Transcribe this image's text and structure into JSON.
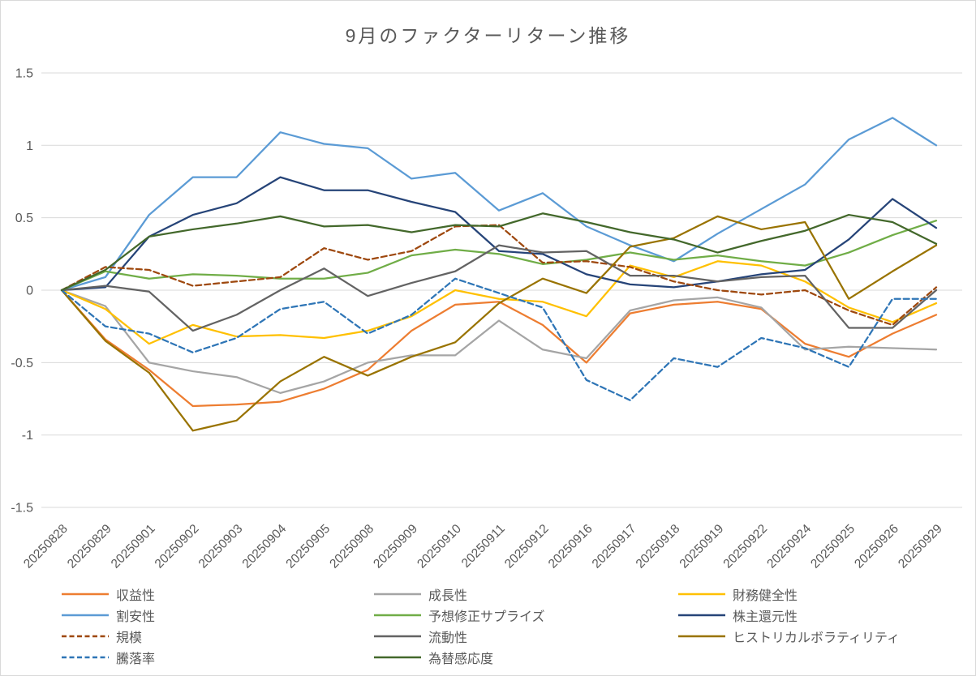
{
  "title": "9月のファクターリターン推移",
  "colors": {
    "background": "#FFFFFF",
    "frame_border": "#D9D9D9",
    "gridline": "#D9D9D9",
    "axis_text": "#595959",
    "title_text": "#595959",
    "legend_text": "#595959"
  },
  "chart_data": {
    "type": "line",
    "title": "9月のファクターリターン推移",
    "xlabel": "",
    "ylabel": "",
    "ylim": [
      -1.5,
      1.5
    ],
    "grid": true,
    "legend_position": "bottom",
    "y_ticks": [
      1.5,
      1,
      0.5,
      0,
      -0.5,
      -1,
      -1.5
    ],
    "y_tick_labels": [
      "1.5",
      "1",
      "0.5",
      "0",
      "-0.5",
      "-1",
      "-1.5"
    ],
    "x": [
      "20250828",
      "20250829",
      "20250901",
      "20250902",
      "20250903",
      "20250904",
      "20250905",
      "20250908",
      "20250909",
      "20250910",
      "20250911",
      "20250912",
      "20250916",
      "20250917",
      "20250918",
      "20250919",
      "20250922",
      "20250924",
      "20250925",
      "20250926",
      "20250929"
    ],
    "series": [
      {
        "key": "profitability",
        "name": "収益性",
        "color": "#ED7D31",
        "dash": false,
        "values": [
          0,
          -0.34,
          -0.55,
          -0.8,
          -0.79,
          -0.77,
          -0.68,
          -0.55,
          -0.28,
          -0.1,
          -0.08,
          -0.24,
          -0.5,
          -0.16,
          -0.1,
          -0.08,
          -0.13,
          -0.37,
          -0.46,
          -0.3,
          -0.17
        ]
      },
      {
        "key": "growth",
        "name": "成長性",
        "color": "#A5A5A5",
        "dash": false,
        "values": [
          0,
          -0.11,
          -0.5,
          -0.56,
          -0.6,
          -0.71,
          -0.63,
          -0.5,
          -0.45,
          -0.45,
          -0.21,
          -0.41,
          -0.47,
          -0.14,
          -0.07,
          -0.05,
          -0.12,
          -0.41,
          -0.39,
          -0.4,
          -0.41
        ]
      },
      {
        "key": "financial-health",
        "name": "財務健全性",
        "color": "#FFC000",
        "dash": false,
        "values": [
          0,
          -0.13,
          -0.37,
          -0.24,
          -0.32,
          -0.31,
          -0.33,
          -0.28,
          -0.18,
          0,
          -0.06,
          -0.08,
          -0.18,
          0.17,
          0.09,
          0.2,
          0.17,
          0.06,
          -0.12,
          -0.22,
          -0.09
        ]
      },
      {
        "key": "value",
        "name": "割安性",
        "color": "#5B9BD5",
        "dash": false,
        "values": [
          0,
          0.09,
          0.52,
          0.78,
          0.78,
          1.09,
          1.01,
          0.98,
          0.77,
          0.81,
          0.55,
          0.67,
          0.44,
          0.31,
          0.2,
          0.39,
          0.56,
          0.73,
          1.04,
          1.19,
          1.0
        ]
      },
      {
        "key": "forecast-revision-surprise",
        "name": "予想修正サプライズ",
        "color": "#70AD47",
        "dash": false,
        "values": [
          0,
          0.13,
          0.08,
          0.11,
          0.1,
          0.08,
          0.08,
          0.12,
          0.24,
          0.28,
          0.25,
          0.18,
          0.21,
          0.26,
          0.21,
          0.24,
          0.2,
          0.17,
          0.26,
          0.38,
          0.48
        ]
      },
      {
        "key": "shareholder-return",
        "name": "株主還元性",
        "color": "#264478",
        "dash": false,
        "values": [
          0,
          0.02,
          0.37,
          0.52,
          0.6,
          0.78,
          0.69,
          0.69,
          0.61,
          0.54,
          0.27,
          0.25,
          0.11,
          0.04,
          0.02,
          0.06,
          0.11,
          0.14,
          0.35,
          0.63,
          0.43
        ]
      },
      {
        "key": "size",
        "name": "規模",
        "color": "#9E480E",
        "dash": true,
        "values": [
          0,
          0.16,
          0.14,
          0.03,
          0.06,
          0.09,
          0.29,
          0.21,
          0.27,
          0.44,
          0.45,
          0.19,
          0.2,
          0.16,
          0.06,
          0,
          -0.03,
          0,
          -0.14,
          -0.24,
          0.02
        ]
      },
      {
        "key": "liquidity",
        "name": "流動性",
        "color": "#636363",
        "dash": false,
        "values": [
          0,
          0.03,
          -0.01,
          -0.28,
          -0.17,
          0,
          0.15,
          -0.04,
          0.05,
          0.13,
          0.31,
          0.26,
          0.27,
          0.1,
          0.1,
          0.06,
          0.09,
          0.1,
          -0.26,
          -0.26,
          0
        ]
      },
      {
        "key": "historical-volatility",
        "name": "ヒストリカルボラティリティ",
        "color": "#997300",
        "dash": false,
        "values": [
          0,
          -0.35,
          -0.57,
          -0.97,
          -0.9,
          -0.63,
          -0.46,
          -0.59,
          -0.46,
          -0.36,
          -0.09,
          0.08,
          -0.02,
          0.3,
          0.36,
          0.51,
          0.42,
          0.47,
          -0.06,
          0.13,
          0.31
        ]
      },
      {
        "key": "price-change-rate",
        "name": "騰落率",
        "color": "#2E75B6",
        "dash": true,
        "values": [
          0,
          -0.25,
          -0.3,
          -0.43,
          -0.33,
          -0.13,
          -0.08,
          -0.3,
          -0.17,
          0.08,
          -0.02,
          -0.12,
          -0.62,
          -0.76,
          -0.47,
          -0.53,
          -0.33,
          -0.4,
          -0.53,
          -0.06,
          -0.06
        ]
      },
      {
        "key": "fx-sensitivity",
        "name": "為替感応度",
        "color": "#43682B",
        "dash": false,
        "values": [
          0,
          0.14,
          0.37,
          0.42,
          0.46,
          0.51,
          0.44,
          0.45,
          0.4,
          0.45,
          0.44,
          0.53,
          0.47,
          0.4,
          0.35,
          0.26,
          0.34,
          0.41,
          0.52,
          0.47,
          0.32
        ]
      }
    ]
  }
}
